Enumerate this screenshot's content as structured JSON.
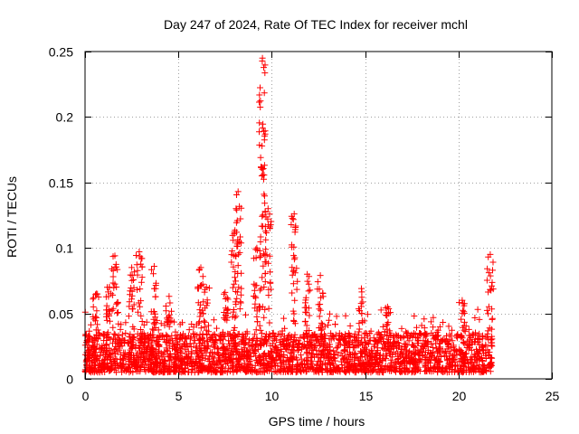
{
  "chart_data": {
    "type": "scatter",
    "title": "Day 247 of 2024, Rate Of TEC Index for receiver mchl",
    "xlabel": "GPS time / hours",
    "ylabel": "ROTI / TECUs",
    "xlim": [
      0,
      25
    ],
    "ylim": [
      0,
      0.25
    ],
    "xticks": [
      0,
      5,
      10,
      15,
      20,
      25
    ],
    "yticks": [
      0,
      0.05,
      0.1,
      0.15,
      0.2,
      0.25
    ],
    "xtick_labels": [
      "0",
      "5",
      "10",
      "15",
      "20",
      "25"
    ],
    "ytick_labels": [
      "0",
      "0.05",
      "0.1",
      "0.15",
      "0.2",
      "0.25"
    ],
    "grid": true,
    "marker": "+",
    "series": [
      {
        "name": "ROTI",
        "color": "#ff0000",
        "data_extent": [
          0,
          21.8
        ],
        "background_band": [
          0.005,
          0.035
        ],
        "peaks": [
          {
            "x": 0.6,
            "y": 0.065
          },
          {
            "x": 1.3,
            "y": 0.07
          },
          {
            "x": 1.6,
            "y": 0.094
          },
          {
            "x": 2.5,
            "y": 0.085
          },
          {
            "x": 2.9,
            "y": 0.097
          },
          {
            "x": 3.7,
            "y": 0.086
          },
          {
            "x": 4.5,
            "y": 0.063
          },
          {
            "x": 6.2,
            "y": 0.085
          },
          {
            "x": 6.5,
            "y": 0.07
          },
          {
            "x": 7.5,
            "y": 0.066
          },
          {
            "x": 8.0,
            "y": 0.112
          },
          {
            "x": 8.2,
            "y": 0.143
          },
          {
            "x": 9.2,
            "y": 0.1
          },
          {
            "x": 9.5,
            "y": 0.245
          },
          {
            "x": 9.8,
            "y": 0.13
          },
          {
            "x": 11.2,
            "y": 0.126
          },
          {
            "x": 11.9,
            "y": 0.08
          },
          {
            "x": 12.6,
            "y": 0.079
          },
          {
            "x": 14.8,
            "y": 0.069
          },
          {
            "x": 16.2,
            "y": 0.055
          },
          {
            "x": 20.2,
            "y": 0.06
          },
          {
            "x": 21.7,
            "y": 0.095
          }
        ]
      }
    ]
  }
}
